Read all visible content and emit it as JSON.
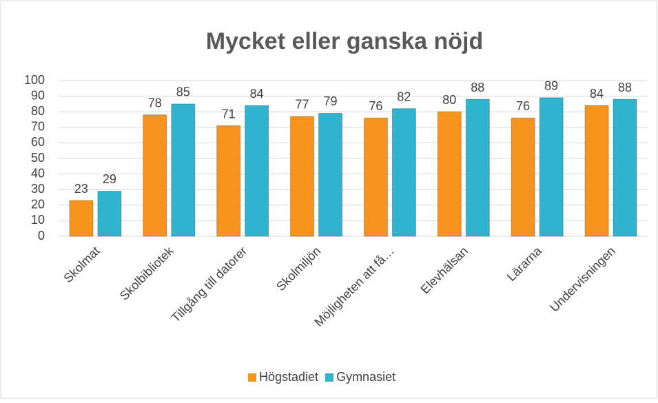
{
  "chart_data": {
    "type": "bar",
    "title": "Mycket eller ganska nöjd",
    "categories": [
      "Skolmat",
      "Skolbibliotek",
      "Tillgång till datorer",
      "Skolmiljön",
      "Möjligheten att få…",
      "Elevhälsan",
      "Lärarna",
      "Undervisningen"
    ],
    "series": [
      {
        "name": "Högstadiet",
        "color": "#f7941d",
        "values": [
          23,
          78,
          71,
          77,
          76,
          80,
          76,
          84
        ]
      },
      {
        "name": "Gymnasiet",
        "color": "#2fb3cf",
        "values": [
          29,
          85,
          84,
          79,
          82,
          88,
          89,
          88
        ]
      }
    ],
    "ylim": [
      0,
      100
    ],
    "yticks": [
      0,
      10,
      20,
      30,
      40,
      50,
      60,
      70,
      80,
      90,
      100
    ],
    "grid": true,
    "legend": "bottom"
  }
}
